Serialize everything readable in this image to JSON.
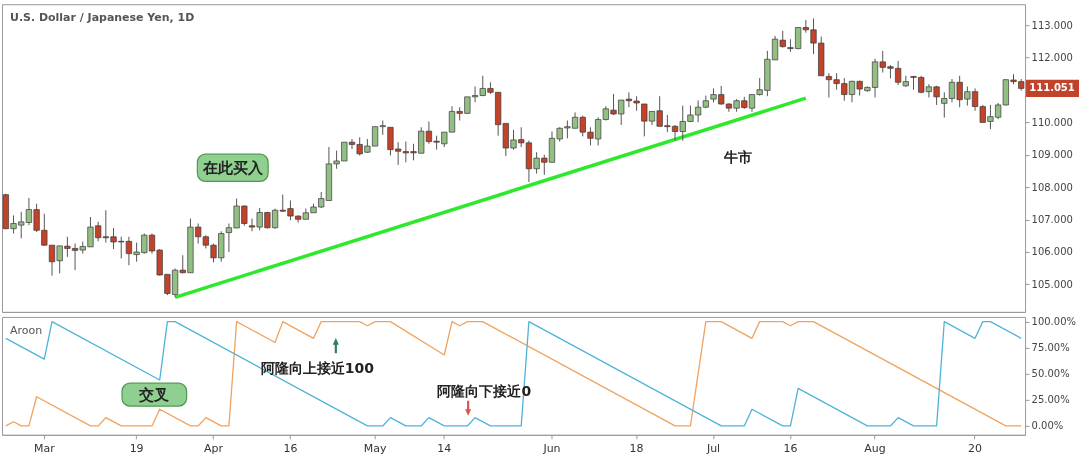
{
  "chart_data": [
    {
      "type": "candlestick",
      "title": "U.S. Dollar / Japanese Yen, 1D",
      "categories": [
        null,
        null,
        null,
        null,
        null,
        null,
        null,
        null,
        null,
        null,
        null,
        null,
        null,
        null,
        null,
        null,
        null,
        null,
        null,
        null,
        null,
        null,
        null,
        null,
        null,
        null,
        null,
        null,
        null,
        null,
        null,
        null,
        null,
        null,
        null,
        null,
        null,
        null,
        null,
        null,
        null,
        null,
        null,
        null,
        null,
        null,
        null,
        null,
        null,
        null,
        null,
        null,
        null,
        null,
        null,
        null,
        null,
        null,
        null,
        null,
        null,
        null,
        null,
        null,
        null,
        null,
        null,
        null,
        null,
        null,
        null,
        null,
        null,
        null,
        null,
        null,
        null,
        null,
        null,
        null,
        null,
        null,
        null,
        null,
        null,
        null,
        null,
        null,
        null,
        null,
        null,
        null,
        null,
        null,
        null,
        null,
        null,
        null,
        null,
        null,
        null,
        null,
        null,
        null,
        null,
        null,
        null,
        null,
        null,
        null,
        null,
        null,
        null,
        null,
        null,
        null,
        null,
        null,
        null,
        null,
        null,
        null,
        null,
        null,
        null,
        null,
        null,
        null,
        null,
        null,
        null,
        null,
        null
      ],
      "ohlc": [
        [
          107.77,
          107.8,
          106.7,
          106.72
        ],
        [
          106.72,
          107.13,
          106.57,
          106.88
        ],
        [
          106.83,
          107.24,
          106.42,
          106.93
        ],
        [
          106.91,
          107.67,
          106.83,
          107.31
        ],
        [
          107.31,
          107.49,
          106.62,
          106.67
        ],
        [
          106.67,
          107.18,
          106.19,
          106.21
        ],
        [
          106.21,
          106.21,
          105.27,
          105.7
        ],
        [
          105.73,
          106.19,
          105.34,
          106.19
        ],
        [
          106.18,
          106.47,
          105.85,
          106.11
        ],
        [
          106.11,
          106.26,
          105.44,
          106.05
        ],
        [
          106.06,
          106.32,
          105.95,
          106.17
        ],
        [
          106.16,
          107.08,
          106.16,
          106.77
        ],
        [
          106.81,
          106.93,
          106.33,
          106.44
        ],
        [
          106.47,
          107.29,
          106.29,
          106.44
        ],
        [
          106.47,
          106.74,
          106.09,
          106.31
        ],
        [
          106.33,
          106.47,
          105.8,
          106.31
        ],
        [
          106.33,
          106.47,
          105.59,
          105.95
        ],
        [
          105.92,
          106.29,
          105.7,
          106.0
        ],
        [
          105.98,
          106.57,
          105.95,
          106.52
        ],
        [
          106.52,
          106.57,
          105.95,
          106.03
        ],
        [
          106.06,
          106.09,
          105.27,
          105.29
        ],
        [
          105.31,
          105.31,
          104.67,
          104.72
        ],
        [
          104.69,
          105.49,
          104.62,
          105.44
        ],
        [
          105.44,
          105.9,
          105.34,
          105.36
        ],
        [
          105.36,
          107.03,
          105.36,
          106.77
        ],
        [
          106.77,
          106.88,
          106.26,
          106.47
        ],
        [
          106.47,
          106.52,
          106.11,
          106.21
        ],
        [
          106.21,
          106.26,
          105.68,
          105.82
        ],
        [
          105.82,
          106.64,
          105.7,
          106.57
        ],
        [
          106.6,
          106.88,
          106.0,
          106.75
        ],
        [
          106.74,
          107.65,
          106.74,
          107.42
        ],
        [
          107.42,
          107.44,
          106.81,
          106.88
        ],
        [
          106.81,
          107.03,
          106.64,
          106.77
        ],
        [
          106.77,
          107.36,
          106.67,
          107.22
        ],
        [
          107.22,
          107.24,
          106.72,
          106.75
        ],
        [
          106.75,
          107.34,
          106.72,
          107.29
        ],
        [
          107.29,
          107.77,
          107.24,
          107.26
        ],
        [
          107.34,
          107.59,
          106.98,
          107.11
        ],
        [
          107.11,
          107.13,
          106.91,
          107.01
        ],
        [
          107.01,
          107.34,
          107.01,
          107.21
        ],
        [
          107.21,
          107.49,
          107.21,
          107.39
        ],
        [
          107.39,
          107.85,
          107.36,
          107.65
        ],
        [
          107.59,
          109.24,
          107.59,
          108.72
        ],
        [
          108.72,
          109.13,
          108.57,
          108.81
        ],
        [
          108.81,
          109.39,
          108.81,
          109.39
        ],
        [
          109.39,
          109.49,
          109.18,
          109.32
        ],
        [
          109.32,
          109.54,
          108.98,
          109.03
        ],
        [
          109.08,
          109.49,
          109.06,
          109.27
        ],
        [
          109.27,
          109.87,
          109.27,
          109.87
        ],
        [
          109.87,
          110.06,
          109.62,
          109.9
        ],
        [
          109.85,
          109.85,
          108.98,
          109.16
        ],
        [
          109.18,
          109.39,
          108.69,
          109.11
        ],
        [
          109.1,
          109.41,
          108.77,
          109.06
        ],
        [
          109.1,
          109.34,
          108.83,
          109.06
        ],
        [
          109.05,
          109.85,
          109.05,
          109.73
        ],
        [
          109.73,
          110.03,
          109.34,
          109.41
        ],
        [
          109.42,
          109.59,
          109.16,
          109.39
        ],
        [
          109.34,
          109.7,
          109.24,
          109.7
        ],
        [
          109.7,
          110.5,
          109.7,
          110.34
        ],
        [
          110.34,
          110.47,
          110.06,
          110.28
        ],
        [
          110.28,
          110.79,
          110.26,
          110.79
        ],
        [
          110.79,
          111.11,
          110.62,
          110.83
        ],
        [
          110.83,
          111.44,
          110.81,
          111.05
        ],
        [
          111.05,
          111.24,
          110.88,
          110.93
        ],
        [
          110.93,
          110.93,
          109.59,
          109.93
        ],
        [
          109.97,
          109.97,
          108.96,
          109.21
        ],
        [
          109.21,
          109.77,
          109.16,
          109.46
        ],
        [
          109.47,
          109.85,
          109.24,
          109.37
        ],
        [
          109.37,
          109.44,
          108.16,
          108.57
        ],
        [
          108.57,
          109.08,
          108.42,
          108.9
        ],
        [
          108.9,
          109.0,
          108.38,
          108.77
        ],
        [
          108.77,
          109.72,
          108.77,
          109.51
        ],
        [
          109.49,
          109.85,
          109.41,
          109.82
        ],
        [
          109.83,
          110.06,
          109.51,
          109.87
        ],
        [
          109.82,
          110.31,
          109.82,
          110.16
        ],
        [
          110.16,
          110.21,
          109.57,
          109.7
        ],
        [
          109.7,
          109.85,
          109.29,
          109.51
        ],
        [
          109.49,
          110.16,
          109.29,
          110.09
        ],
        [
          110.09,
          110.5,
          110.06,
          110.42
        ],
        [
          110.38,
          110.88,
          110.23,
          110.26
        ],
        [
          110.26,
          110.69,
          109.92,
          110.69
        ],
        [
          110.72,
          110.93,
          110.47,
          110.67
        ],
        [
          110.66,
          110.81,
          110.36,
          110.6
        ],
        [
          110.57,
          110.57,
          109.57,
          110.04
        ],
        [
          110.04,
          110.34,
          109.92,
          110.34
        ],
        [
          110.36,
          110.81,
          109.88,
          109.88
        ],
        [
          109.9,
          110.23,
          109.7,
          109.87
        ],
        [
          109.88,
          109.92,
          109.44,
          109.72
        ],
        [
          109.72,
          110.52,
          109.44,
          110.03
        ],
        [
          110.03,
          110.52,
          110.01,
          110.23
        ],
        [
          110.23,
          110.68,
          110.01,
          110.47
        ],
        [
          110.47,
          110.83,
          110.44,
          110.67
        ],
        [
          110.72,
          111.05,
          110.62,
          110.86
        ],
        [
          110.86,
          111.13,
          110.54,
          110.57
        ],
        [
          110.57,
          110.59,
          110.33,
          110.44
        ],
        [
          110.44,
          110.72,
          110.33,
          110.67
        ],
        [
          110.67,
          110.79,
          110.42,
          110.46
        ],
        [
          110.44,
          110.86,
          110.33,
          110.86
        ],
        [
          110.86,
          111.37,
          110.83,
          111.01
        ],
        [
          110.99,
          112.21,
          110.81,
          111.95
        ],
        [
          111.93,
          112.67,
          111.93,
          112.57
        ],
        [
          112.54,
          112.83,
          112.31,
          112.34
        ],
        [
          112.31,
          112.57,
          112.18,
          112.28
        ],
        [
          112.28,
          112.93,
          112.26,
          112.93
        ],
        [
          112.93,
          113.16,
          112.77,
          112.86
        ],
        [
          112.86,
          113.21,
          112.11,
          112.45
        ],
        [
          112.45,
          112.65,
          111.44,
          111.44
        ],
        [
          111.42,
          111.52,
          110.77,
          111.32
        ],
        [
          111.32,
          111.52,
          111.01,
          111.2
        ],
        [
          111.2,
          111.37,
          110.67,
          110.86
        ],
        [
          110.86,
          111.29,
          110.62,
          111.27
        ],
        [
          111.27,
          111.29,
          110.83,
          111.03
        ],
        [
          110.98,
          111.11,
          110.95,
          111.08
        ],
        [
          111.08,
          111.97,
          110.77,
          111.87
        ],
        [
          111.87,
          112.21,
          111.54,
          111.7
        ],
        [
          111.72,
          111.77,
          111.36,
          111.67
        ],
        [
          111.67,
          111.9,
          111.15,
          111.24
        ],
        [
          111.13,
          111.44,
          111.1,
          111.26
        ],
        [
          111.42,
          111.42,
          111.01,
          111.39
        ],
        [
          111.39,
          111.44,
          110.9,
          110.93
        ],
        [
          110.95,
          111.18,
          110.77,
          111.1
        ],
        [
          111.1,
          111.13,
          110.54,
          110.79
        ],
        [
          110.59,
          110.93,
          110.15,
          110.74
        ],
        [
          110.74,
          111.34,
          110.62,
          111.24
        ],
        [
          111.24,
          111.44,
          110.47,
          110.7
        ],
        [
          110.72,
          111.11,
          110.52,
          110.95
        ],
        [
          110.95,
          111.05,
          110.36,
          110.49
        ],
        [
          110.49,
          110.54,
          110.0,
          110.0
        ],
        [
          110.03,
          110.54,
          109.79,
          110.18
        ],
        [
          110.16,
          110.6,
          110.1,
          110.54
        ],
        [
          110.54,
          111.32,
          110.52,
          111.32
        ],
        [
          111.31,
          111.49,
          111.18,
          111.26
        ],
        [
          111.26,
          111.34,
          110.98,
          111.05
        ]
      ],
      "colors": [
        "#c0432a",
        "#93bf85",
        "#93bf85",
        "#93bf85",
        "#c0432a",
        "#c0432a",
        "#c0432a",
        "#93bf85",
        "#c0432a",
        "#c0432a",
        "#93bf85",
        "#93bf85",
        "#c0432a",
        "#c0432a",
        "#c0432a",
        "#c0432a",
        "#c0432a",
        "#93bf85",
        "#93bf85",
        "#c0432a",
        "#c0432a",
        "#c0432a",
        "#93bf85",
        "#c0432a",
        "#93bf85",
        "#c0432a",
        "#c0432a",
        "#c0432a",
        "#93bf85",
        "#93bf85",
        "#93bf85",
        "#c0432a",
        "#c0432a",
        "#93bf85",
        "#c0432a",
        "#93bf85",
        "#c0432a",
        "#c0432a",
        "#c0432a",
        "#93bf85",
        "#93bf85",
        "#93bf85",
        "#93bf85",
        "#93bf85",
        "#93bf85",
        "#c0432a",
        "#c0432a",
        "#93bf85",
        "#93bf85",
        "#93bf85",
        "#c0432a",
        "#c0432a",
        "#c0432a",
        "#c0432a",
        "#93bf85",
        "#c0432a",
        "#c0432a",
        "#93bf85",
        "#93bf85",
        "#c0432a",
        "#93bf85",
        "#93bf85",
        "#93bf85",
        "#c0432a",
        "#c0432a",
        "#c0432a",
        "#93bf85",
        "#c0432a",
        "#c0432a",
        "#93bf85",
        "#c0432a",
        "#93bf85",
        "#93bf85",
        "#93bf85",
        "#93bf85",
        "#c0432a",
        "#c0432a",
        "#93bf85",
        "#93bf85",
        "#c0432a",
        "#93bf85",
        "#c0432a",
        "#c0432a",
        "#c0432a",
        "#93bf85",
        "#c0432a",
        "#c0432a",
        "#c0432a",
        "#93bf85",
        "#93bf85",
        "#93bf85",
        "#93bf85",
        "#93bf85",
        "#c0432a",
        "#c0432a",
        "#93bf85",
        "#c0432a",
        "#93bf85",
        "#93bf85",
        "#93bf85",
        "#93bf85",
        "#c0432a",
        "#c0432a",
        "#93bf85",
        "#c0432a",
        "#c0432a",
        "#c0432a",
        "#c0432a",
        "#c0432a",
        "#c0432a",
        "#93bf85",
        "#c0432a",
        "#93bf85",
        "#93bf85",
        "#c0432a",
        "#c0432a",
        "#c0432a",
        "#93bf85",
        "#c0432a",
        "#c0432a",
        "#93bf85",
        "#c0432a",
        "#93bf85",
        "#93bf85",
        "#c0432a",
        "#93bf85",
        "#c0432a",
        "#c0432a",
        "#93bf85",
        "#93bf85",
        "#93bf85",
        "#c0432a",
        "#c0432a"
      ],
      "series": [
        {
          "type": "line",
          "color": "#2ee82e",
          "values": [
            null,
            null,
            null,
            null,
            null,
            null,
            null,
            null,
            null,
            null,
            null,
            null,
            null,
            null,
            null,
            null,
            null,
            null,
            null,
            null,
            null,
            null,
            104.6,
            null,
            null,
            null,
            null,
            null,
            null,
            null,
            null,
            null,
            null,
            null,
            null,
            null,
            null,
            null,
            null,
            null,
            null,
            null,
            null,
            null,
            null,
            null,
            null,
            null,
            null,
            null,
            null,
            null,
            null,
            null,
            null,
            null,
            null,
            null,
            null,
            null,
            null,
            null,
            null,
            null,
            null,
            null,
            null,
            null,
            null,
            null,
            null,
            null,
            null,
            null,
            null,
            null,
            null,
            null,
            null,
            null,
            null,
            null,
            null,
            null,
            null,
            null,
            null,
            null,
            null,
            null,
            null,
            null,
            null,
            null,
            null,
            null,
            null,
            null,
            null,
            null,
            null,
            null,
            null,
            null,
            110.75,
            null,
            null,
            null,
            null,
            null,
            null,
            null,
            null,
            null,
            null,
            null,
            null,
            null,
            null,
            null,
            null,
            null,
            null,
            null,
            null,
            null,
            null,
            null,
            null,
            null,
            null,
            null,
            null
          ]
        }
      ],
      "ylim": [
        104.15,
        113.65
      ],
      "yticks": [
        {
          "value": 105,
          "label": "105.000"
        },
        {
          "value": 106,
          "label": "106.000"
        },
        {
          "value": 107,
          "label": "107.000"
        },
        {
          "value": 108,
          "label": "108.000"
        },
        {
          "value": 109,
          "label": "109.000"
        },
        {
          "value": 110,
          "label": "110.000"
        },
        {
          "value": 112,
          "label": "112.000"
        },
        {
          "value": 113,
          "label": "113.000"
        }
      ],
      "tick_labels": "y",
      "annotations": [
        "在此买入",
        "牛市",
        "111.051"
      ]
    },
    {
      "type": "line",
      "title": "Aroon",
      "categories": [
        null,
        null,
        null,
        null,
        null,
        "Mar",
        null,
        null,
        null,
        null,
        null,
        null,
        null,
        null,
        null,
        null,
        null,
        "19",
        null,
        null,
        null,
        null,
        null,
        null,
        null,
        null,
        null,
        "Apr",
        null,
        null,
        null,
        null,
        null,
        null,
        null,
        null,
        null,
        "16",
        null,
        null,
        null,
        null,
        null,
        null,
        null,
        null,
        null,
        null,
        "May",
        null,
        null,
        null,
        null,
        null,
        null,
        null,
        null,
        "14",
        null,
        null,
        null,
        null,
        null,
        null,
        null,
        null,
        null,
        null,
        null,
        null,
        null,
        "Jun",
        null,
        null,
        null,
        null,
        null,
        null,
        null,
        null,
        null,
        null,
        "18",
        null,
        null,
        null,
        null,
        null,
        null,
        null,
        null,
        null,
        "Jul",
        null,
        null,
        null,
        null,
        null,
        null,
        null,
        null,
        null,
        "16",
        null,
        null,
        null,
        null,
        null,
        null,
        null,
        null,
        null,
        null,
        "Aug",
        null,
        null,
        null,
        null,
        null,
        null,
        null,
        null,
        null,
        null,
        null,
        null,
        "20",
        null,
        null,
        null,
        null,
        null,
        null
      ],
      "series": [
        {
          "type": "line",
          "color": "#f0a35e",
          "values": [
            0,
            4,
            0,
            0,
            28,
            null,
            null,
            null,
            null,
            null,
            null,
            0,
            0,
            8,
            null,
            0,
            null,
            null,
            null,
            0,
            16,
            null,
            null,
            null,
            0,
            0,
            8,
            null,
            0,
            0,
            100,
            null,
            null,
            null,
            null,
            80,
            100,
            null,
            null,
            null,
            84,
            100,
            null,
            null,
            null,
            null,
            100,
            96,
            100,
            null,
            100,
            null,
            null,
            null,
            null,
            null,
            null,
            68,
            100,
            96,
            100,
            null,
            100,
            null,
            null,
            null,
            null,
            null,
            null,
            null,
            null,
            null,
            null,
            null,
            null,
            null,
            null,
            null,
            null,
            null,
            null,
            null,
            null,
            null,
            null,
            null,
            null,
            0,
            null,
            0,
            null,
            100,
            null,
            100,
            null,
            null,
            null,
            84,
            100,
            null,
            null,
            100,
            96,
            100,
            null,
            100,
            null,
            null,
            null,
            null,
            null,
            null,
            null,
            null,
            null,
            null,
            null,
            null,
            null,
            null,
            null,
            null,
            null,
            null,
            null,
            null,
            null,
            null,
            null,
            null,
            0,
            null,
            0
          ]
        },
        {
          "type": "line",
          "color": "#4fb3d9",
          "values": [
            84,
            null,
            null,
            null,
            null,
            64,
            100,
            null,
            null,
            null,
            null,
            null,
            null,
            null,
            null,
            null,
            null,
            null,
            null,
            null,
            44,
            100,
            100,
            null,
            null,
            null,
            null,
            null,
            null,
            null,
            null,
            null,
            null,
            null,
            null,
            null,
            null,
            null,
            null,
            null,
            null,
            null,
            null,
            null,
            null,
            null,
            null,
            0,
            null,
            0,
            8,
            null,
            0,
            null,
            0,
            8,
            null,
            0,
            null,
            null,
            0,
            8,
            null,
            0,
            null,
            null,
            null,
            0,
            100,
            null,
            null,
            null,
            null,
            null,
            null,
            null,
            null,
            null,
            null,
            null,
            null,
            null,
            null,
            null,
            null,
            null,
            null,
            null,
            null,
            null,
            null,
            null,
            null,
            0,
            null,
            null,
            0,
            16,
            null,
            null,
            null,
            0,
            0,
            36,
            null,
            null,
            null,
            null,
            null,
            null,
            null,
            null,
            0,
            null,
            null,
            0,
            8,
            null,
            0,
            null,
            null,
            0,
            100,
            null,
            null,
            null,
            84,
            100,
            100,
            null,
            null,
            null,
            84
          ]
        }
      ],
      "ylim": [
        -8.5,
        104.5
      ],
      "yticks": [
        {
          "value": 0,
          "label": "0.00%"
        },
        {
          "value": 25,
          "label": "25.00%"
        },
        {
          "value": 50,
          "label": "50.00%"
        },
        {
          "value": 75,
          "label": "75.00%"
        },
        {
          "value": 100,
          "label": "100.00%"
        }
      ],
      "annotations": [
        "交叉",
        "阿隆向上接近100",
        "阿隆向下接近0"
      ]
    }
  ]
}
